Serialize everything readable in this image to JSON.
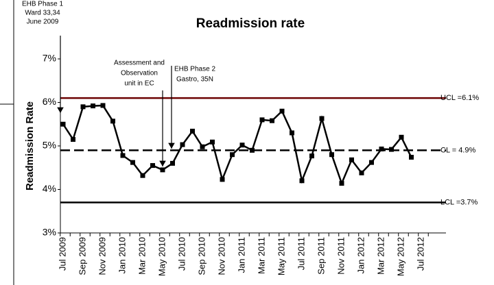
{
  "chart_data": {
    "type": "line",
    "title": "Readmission rate",
    "y_label": "Readmission Rate",
    "categories": [
      "Jul 2009",
      null,
      "Sep 2009",
      null,
      "Nov 2009",
      null,
      "Jan 2010",
      null,
      "Mar 2010",
      null,
      "May 2010",
      null,
      "Jul 2010",
      null,
      "Sep 2010",
      null,
      "Nov 2010",
      null,
      "Jan 2011",
      null,
      "Mar 2011",
      null,
      "May 2011",
      null,
      "Jul 2011",
      null,
      "Sep 2011",
      null,
      "Nov 2011",
      null,
      "Jan 2012",
      null,
      "Mar 2012",
      null,
      "May 2012",
      null,
      "Jul 2012",
      null
    ],
    "series": [
      {
        "name": "Readmission rate",
        "color": "#000000",
        "values": [
          5.5,
          5.15,
          5.9,
          5.92,
          5.93,
          5.57,
          4.78,
          4.62,
          4.32,
          4.55,
          4.45,
          4.6,
          5.03,
          5.34,
          4.98,
          5.09,
          4.23,
          4.8,
          5.02,
          4.9,
          5.6,
          5.58,
          5.8,
          5.3,
          4.2,
          4.77,
          5.63,
          4.8,
          4.14,
          4.68,
          4.38,
          4.62,
          4.93,
          4.92,
          5.2,
          4.74,
          null,
          null
        ]
      }
    ],
    "ylim": [
      3,
      7
    ],
    "yticks": [
      {
        "value": 3,
        "label": "3%"
      },
      {
        "value": 4,
        "label": "4%"
      },
      {
        "value": 5,
        "label": "5%"
      },
      {
        "value": 6,
        "label": "6%"
      },
      {
        "value": 7,
        "label": "7%"
      }
    ],
    "reference_lines": [
      {
        "label": "UCL =6.1%",
        "value": 6.1,
        "color": "#6b0000",
        "style": "solid"
      },
      {
        "label": "CL = 4.9%",
        "value": 4.9,
        "color": "#000000",
        "style": "dashed"
      },
      {
        "label": "LCL =3.7%",
        "value": 3.7,
        "color": "#000000",
        "style": "solid"
      }
    ],
    "annotations": [
      {
        "lines": [
          "EHB Phase 1",
          "Ward 33,34",
          "June 2009"
        ]
      },
      {
        "lines": [
          "Assessment and",
          "Observation",
          "unit in EC"
        ]
      },
      {
        "lines": [
          "EHB Phase 2",
          "Gastro, 35N"
        ]
      }
    ]
  }
}
